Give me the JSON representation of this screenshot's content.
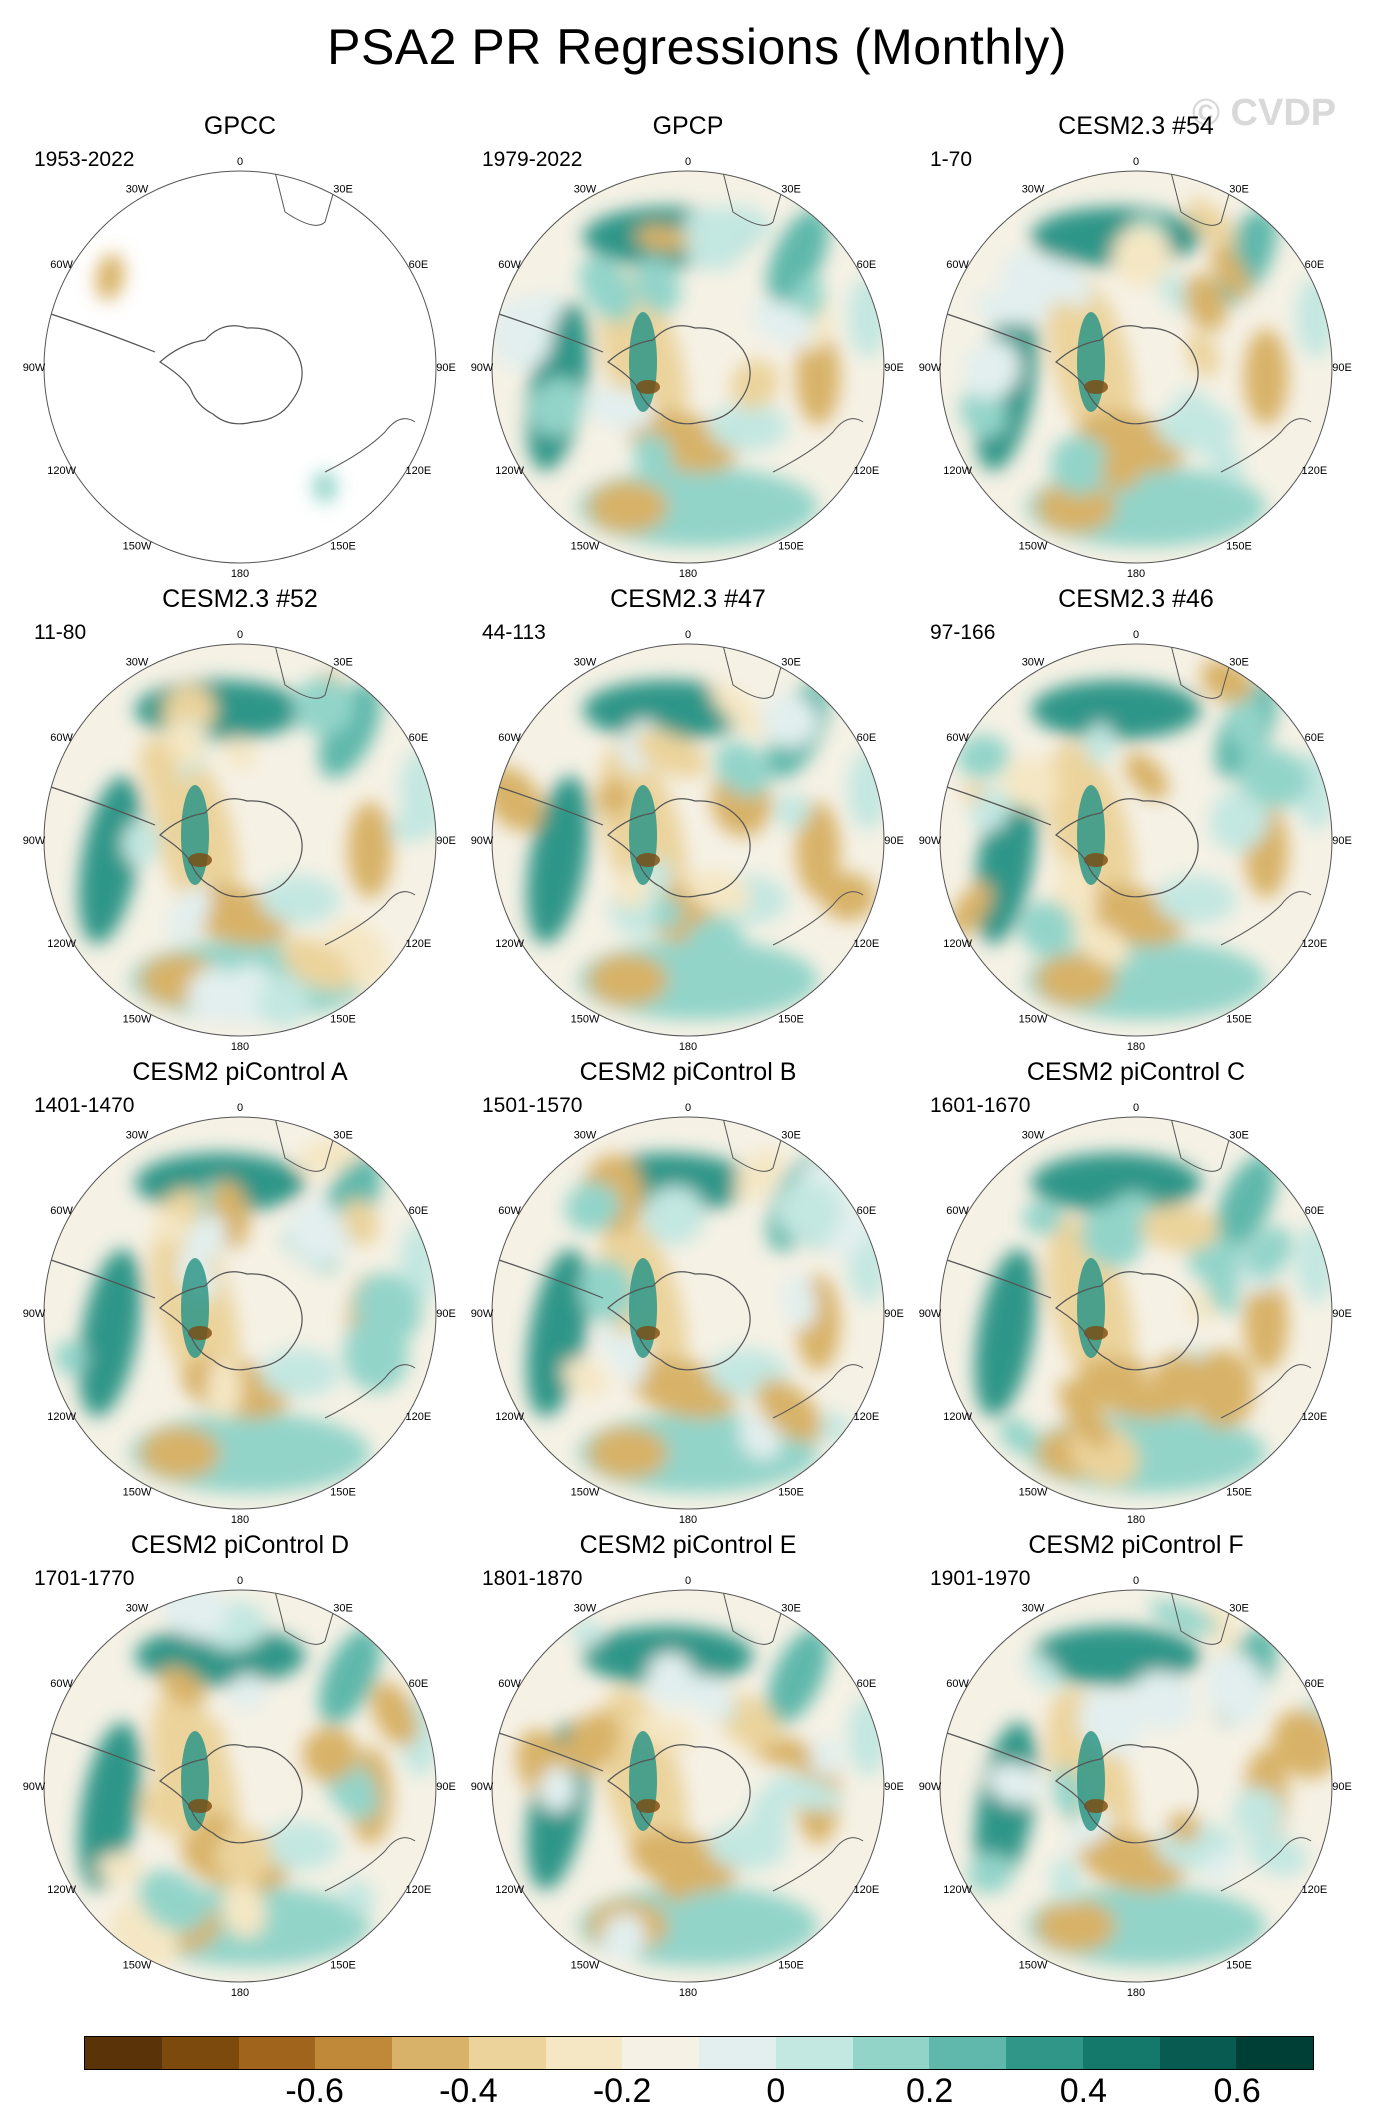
{
  "title": "PSA2 PR Regressions (Monthly)",
  "watermark": "© CVDP",
  "lon_labels": [
    "0",
    "30E",
    "60E",
    "90E",
    "120E",
    "150E",
    "180",
    "150W",
    "120W",
    "90W",
    "60W",
    "30W"
  ],
  "panels": [
    {
      "title": "GPCC",
      "years": "1953-2022",
      "coverage": "land-only"
    },
    {
      "title": "GPCP",
      "years": "1979-2022",
      "coverage": "full"
    },
    {
      "title": "CESM2.3 #54",
      "years": "1-70",
      "coverage": "full"
    },
    {
      "title": "CESM2.3 #52",
      "years": "11-80",
      "coverage": "full"
    },
    {
      "title": "CESM2.3 #47",
      "years": "44-113",
      "coverage": "full"
    },
    {
      "title": "CESM2.3 #46",
      "years": "97-166",
      "coverage": "full"
    },
    {
      "title": "CESM2 piControl A",
      "years": "1401-1470",
      "coverage": "full"
    },
    {
      "title": "CESM2 piControl B",
      "years": "1501-1570",
      "coverage": "full"
    },
    {
      "title": "CESM2 piControl C",
      "years": "1601-1670",
      "coverage": "full"
    },
    {
      "title": "CESM2 piControl D",
      "years": "1701-1770",
      "coverage": "full"
    },
    {
      "title": "CESM2 piControl E",
      "years": "1801-1870",
      "coverage": "full"
    },
    {
      "title": "CESM2 piControl F",
      "years": "1901-1970",
      "coverage": "full"
    }
  ],
  "colorbar": {
    "colors": [
      "#5a3408",
      "#7d4a0e",
      "#a0641c",
      "#c0893a",
      "#d8b268",
      "#ebd39b",
      "#f5e7c4",
      "#f5f1e5",
      "#e2efee",
      "#c3e7e1",
      "#93d4c9",
      "#5fb8ab",
      "#2f9688",
      "#14786b",
      "#075b50",
      "#003f35"
    ],
    "labels": [
      "-0.6",
      "-0.4",
      "-0.2",
      "0",
      "0.2",
      "0.4",
      "0.6"
    ]
  }
}
